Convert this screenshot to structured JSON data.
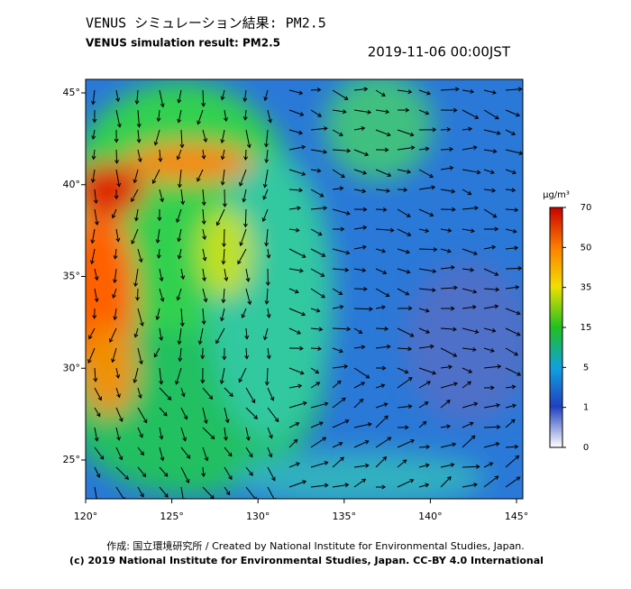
{
  "header": {
    "title": "VENUS シミュレーション結果: PM2.5",
    "subtitle": "VENUS simulation result: PM2.5",
    "timestamp": "2019-11-06 00:00JST"
  },
  "map": {
    "lon_labels": [
      "120°",
      "125°",
      "130°",
      "135°",
      "140°",
      "145°"
    ],
    "lat_labels": [
      "45°",
      "40°",
      "35°",
      "30°",
      "25°"
    ]
  },
  "colorbar": {
    "unit": "μg/m³",
    "labels": [
      "70",
      "50",
      "35",
      "15",
      "5",
      "1",
      "0"
    ]
  },
  "footer": {
    "credit": "作成: 国立環境研究所 / Created by National Institute for Environmental Studies, Japan.",
    "copyright": "(c) 2019 National Institute for Environmental Studies, Japan. CC-BY 4.0 International"
  }
}
